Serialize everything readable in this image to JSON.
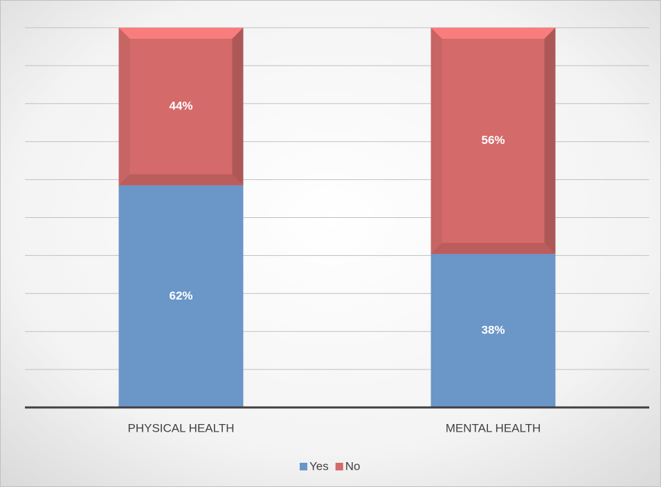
{
  "chart_data": {
    "type": "bar",
    "stacking": "percent",
    "categories": [
      "PHYSICAL HEALTH",
      "MENTAL HEALTH"
    ],
    "series": [
      {
        "name": "Yes",
        "color": "#6a96c8",
        "values": [
          62,
          38
        ],
        "value_labels": [
          "62%",
          "38%"
        ]
      },
      {
        "name": "No",
        "color": "#d46a6a",
        "values": [
          44,
          56
        ],
        "value_labels": [
          "44%",
          "56%"
        ]
      }
    ],
    "ylim": [
      0,
      100
    ],
    "yticks": [
      0,
      10,
      20,
      30,
      40,
      50,
      60,
      70,
      80,
      90,
      100
    ],
    "tick_labels": false,
    "grid": true,
    "legend": "bottom"
  }
}
